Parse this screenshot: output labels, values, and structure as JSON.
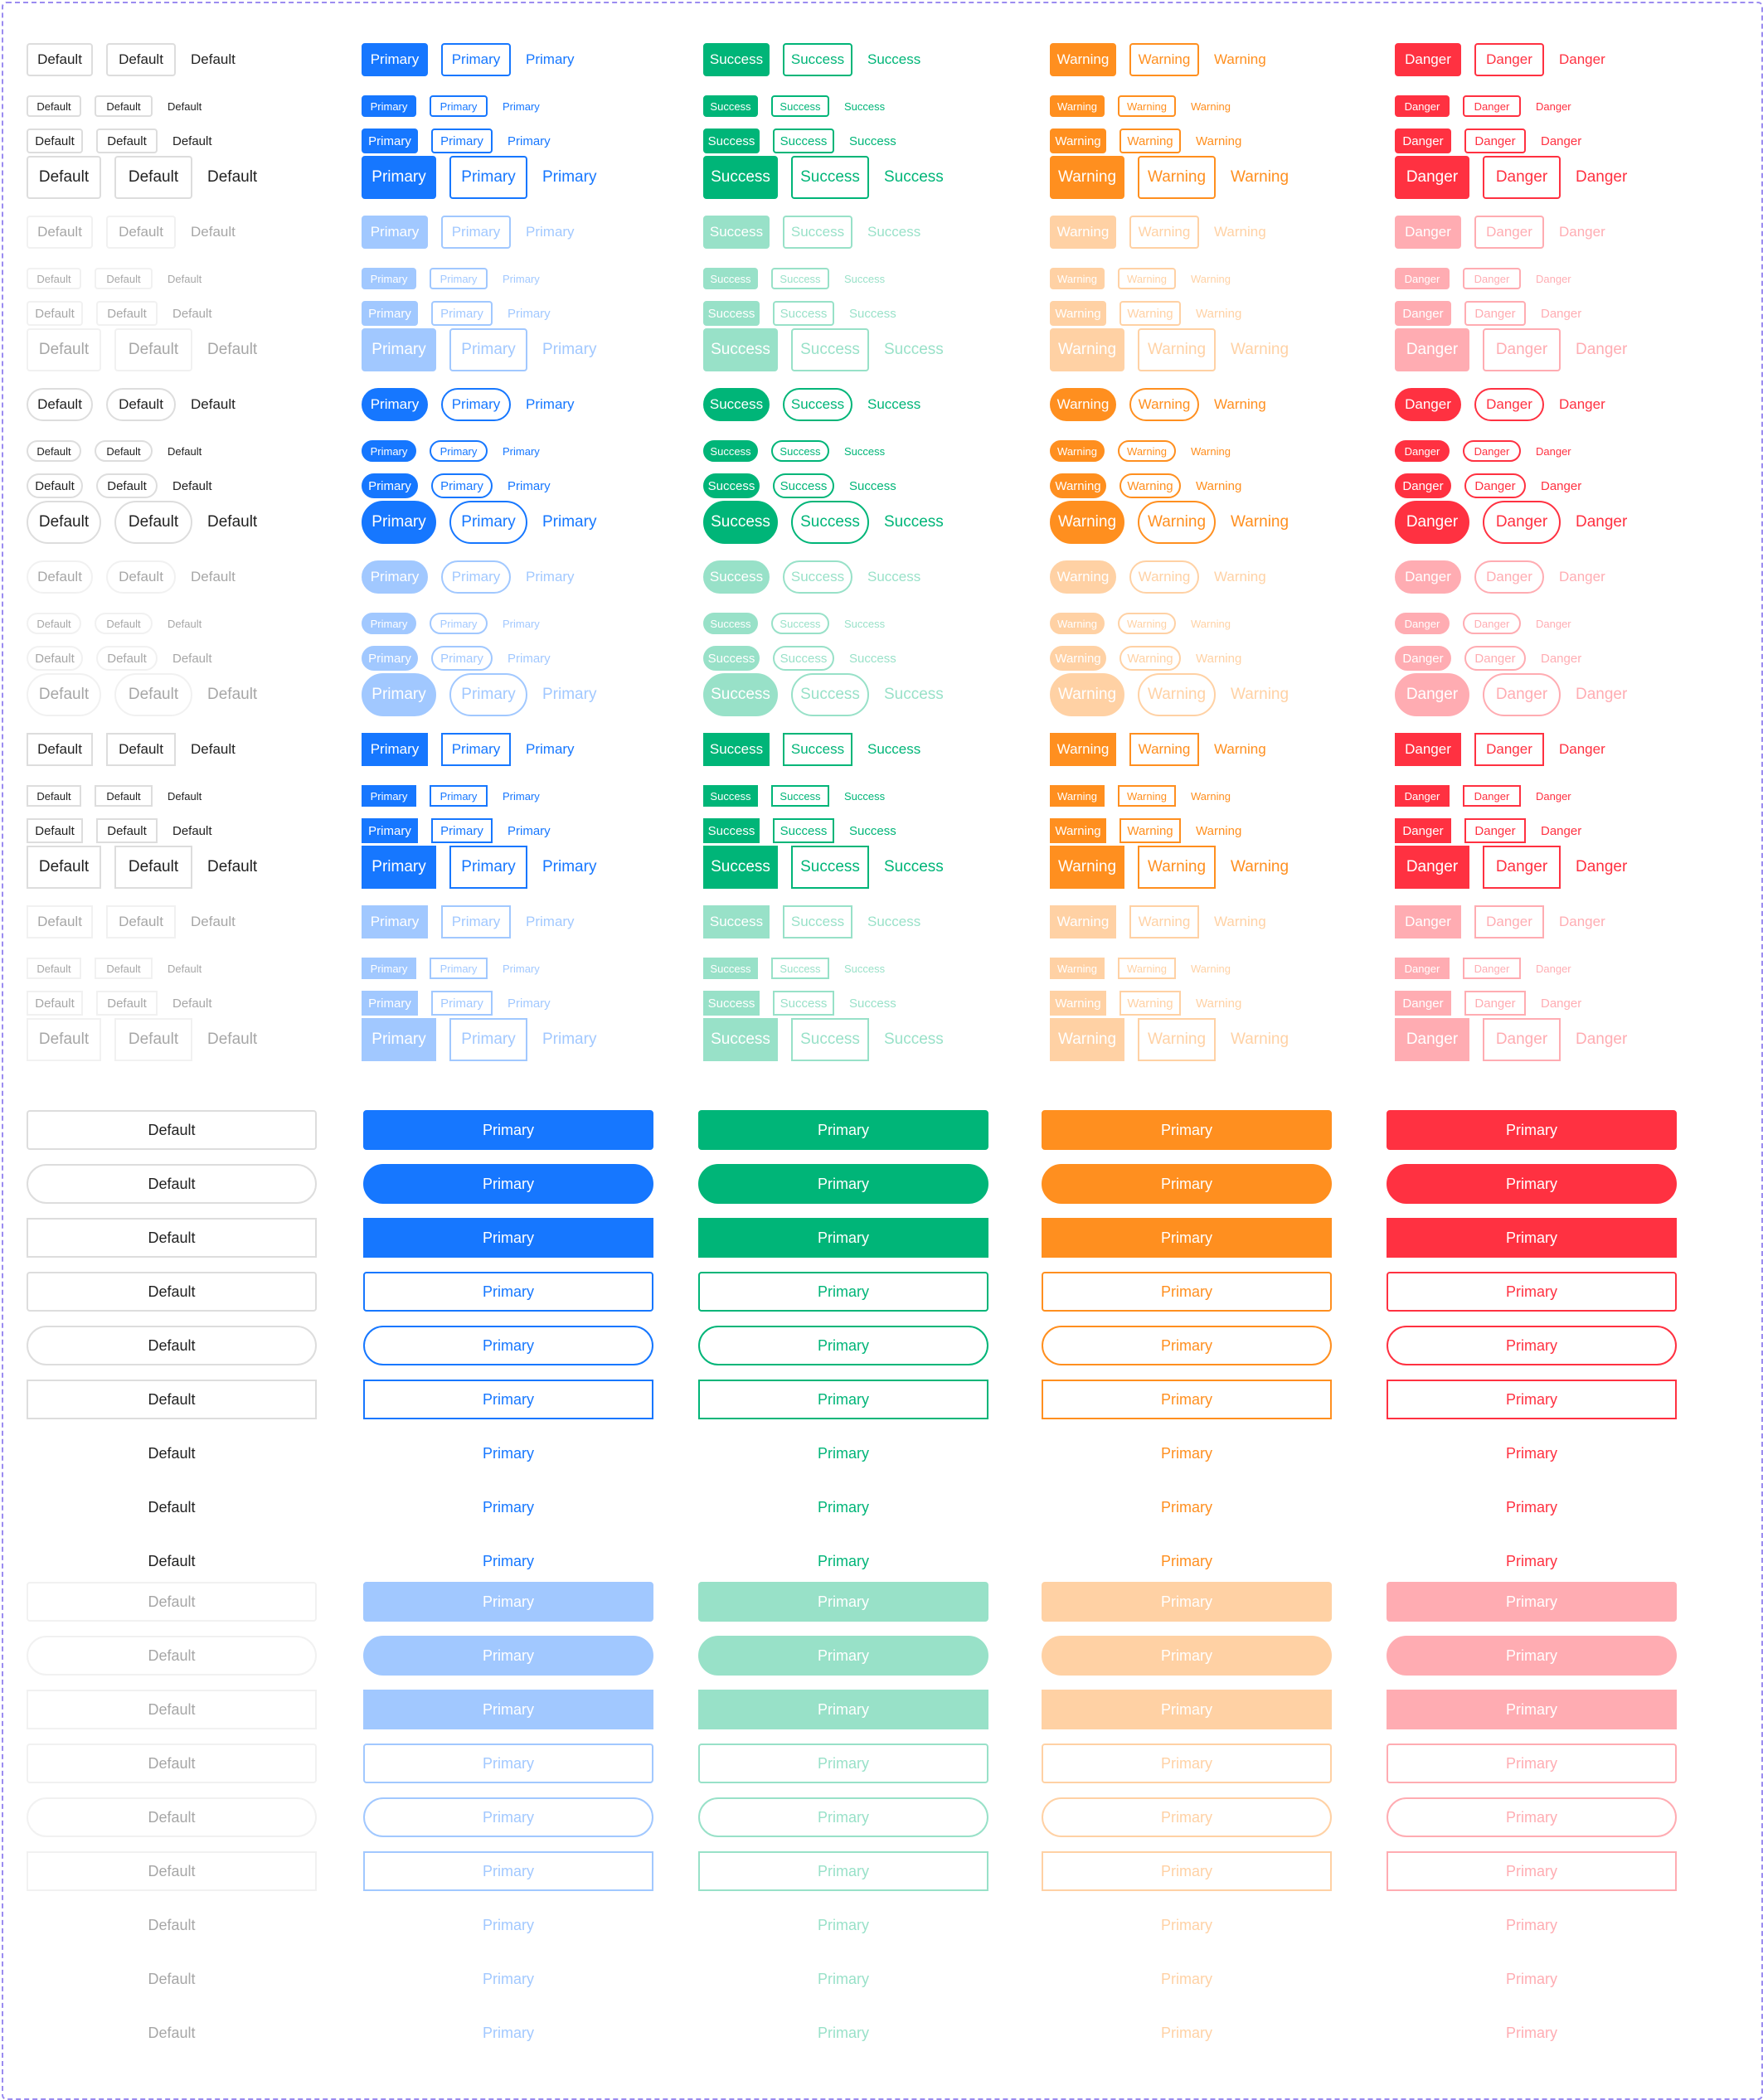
{
  "colors": {
    "default": "#222222",
    "default_border": "#dddddd",
    "primary": "#1677ff",
    "success": "#00b578",
    "warning": "#ff8f1f",
    "danger": "#ff3141",
    "disabled_opacity": 0.4
  },
  "labels": {
    "default": "Default",
    "primary": "Primary",
    "success": "Success",
    "warning": "Warning",
    "danger": "Danger"
  },
  "grid": {
    "shapes": [
      "rectangular",
      "rounded",
      "square"
    ],
    "sizes": [
      "middle",
      "mini",
      "small",
      "large"
    ],
    "states": [
      "enabled",
      "disabled"
    ],
    "fills": [
      "solid",
      "outline",
      "none"
    ],
    "colors": [
      "default",
      "primary",
      "success",
      "warning",
      "danger"
    ]
  },
  "block": {
    "enabled_rows": [
      {
        "shape": "rectangular",
        "fill": "solid"
      },
      {
        "shape": "rounded",
        "fill": "solid"
      },
      {
        "shape": "square",
        "fill": "solid"
      },
      {
        "shape": "rectangular",
        "fill": "outline"
      },
      {
        "shape": "rounded",
        "fill": "outline"
      },
      {
        "shape": "square",
        "fill": "outline"
      },
      {
        "shape": "rectangular",
        "fill": "none"
      },
      {
        "shape": "rounded",
        "fill": "none"
      },
      {
        "shape": "square",
        "fill": "none"
      }
    ],
    "disabled_rows": [
      {
        "shape": "rectangular",
        "fill": "solid"
      },
      {
        "shape": "rounded",
        "fill": "solid"
      },
      {
        "shape": "square",
        "fill": "solid"
      },
      {
        "shape": "rectangular",
        "fill": "outline"
      },
      {
        "shape": "rounded",
        "fill": "outline"
      },
      {
        "shape": "square",
        "fill": "outline"
      },
      {
        "shape": "rectangular",
        "fill": "none"
      },
      {
        "shape": "rounded",
        "fill": "none"
      },
      {
        "shape": "square",
        "fill": "none"
      }
    ],
    "column_labels": [
      "default",
      "primary",
      "primary",
      "primary",
      "primary"
    ]
  }
}
